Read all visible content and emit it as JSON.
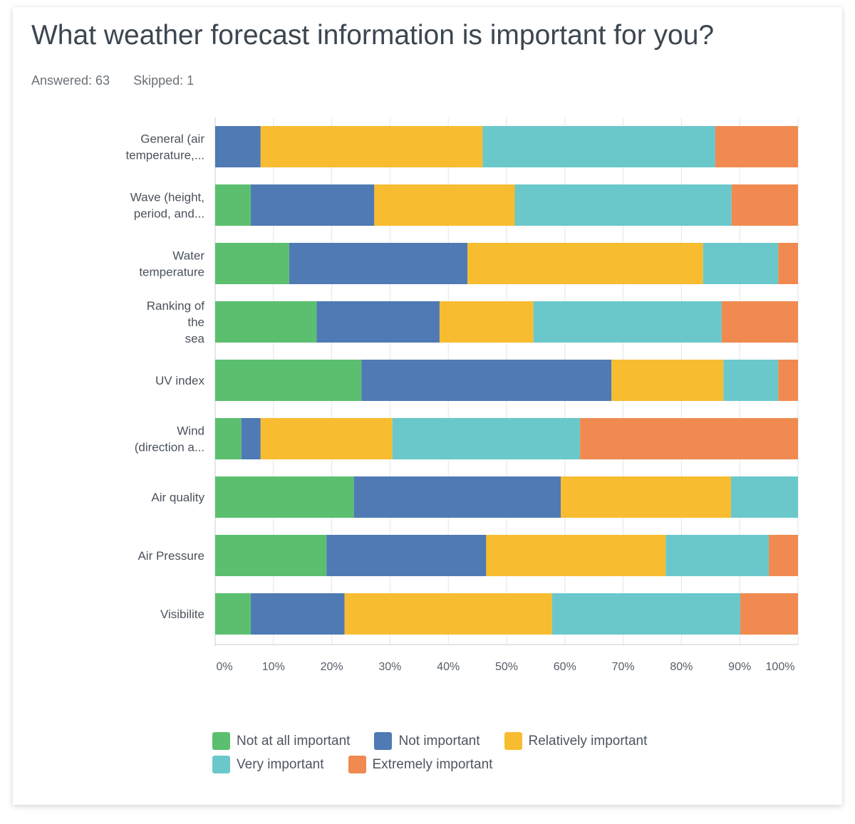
{
  "header": {
    "title": "What weather forecast information is important for you?",
    "answered": "Answered: 63",
    "skipped": "Skipped: 1"
  },
  "chart_data": {
    "type": "bar",
    "orientation": "horizontal",
    "stacked": "100%",
    "title": "What weather forecast information is important for you?",
    "categories": [
      [
        "General (air",
        "temperature,..."
      ],
      [
        "Wave (height,",
        "period, and..."
      ],
      [
        "Water",
        "temperature"
      ],
      [
        "Ranking of",
        "the",
        "sea"
      ],
      [
        "UV index"
      ],
      [
        "Wind",
        "(direction a..."
      ],
      [
        "Air quality"
      ],
      [
        "Air Pressure"
      ],
      [
        "Visibilite"
      ]
    ],
    "series": [
      {
        "name": "Not at all important",
        "color": "#5bbf6f",
        "values": [
          0,
          6.1,
          12.7,
          17.4,
          25.1,
          4.5,
          23.8,
          19.1,
          6.1
        ]
      },
      {
        "name": "Not important",
        "color": "#4f7ab4",
        "values": [
          7.8,
          21.2,
          30.6,
          21.1,
          42.9,
          3.3,
          35.5,
          27.4,
          16.1
        ]
      },
      {
        "name": "Relatively important",
        "color": "#f8bc30",
        "values": [
          38.1,
          24.1,
          40.4,
          16.1,
          19.2,
          22.6,
          29.2,
          30.8,
          35.6
        ]
      },
      {
        "name": "Very important",
        "color": "#6ac8cb",
        "values": [
          39.9,
          37.2,
          12.9,
          32.3,
          9.4,
          32.2,
          11.5,
          17.7,
          32.3
        ]
      },
      {
        "name": "Extremely important",
        "color": "#f08a50",
        "values": [
          14.2,
          11.4,
          3.4,
          13.1,
          3.4,
          37.4,
          0,
          5.0,
          9.9
        ]
      }
    ],
    "xlim": [
      0,
      100
    ],
    "xticks": [
      "0%",
      "10%",
      "20%",
      "30%",
      "40%",
      "50%",
      "60%",
      "70%",
      "80%",
      "90%",
      "100%"
    ],
    "grid": true,
    "legend": "bottom"
  }
}
